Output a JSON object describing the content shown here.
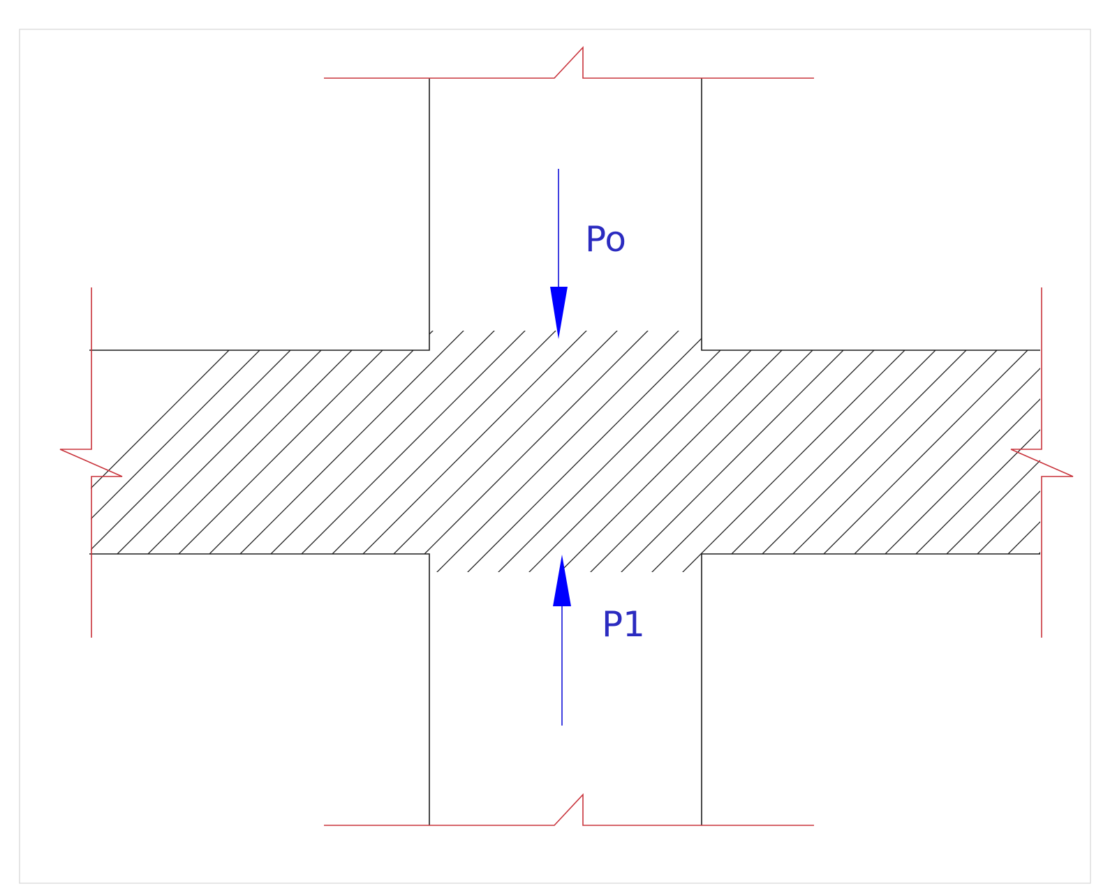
{
  "loads": [
    {
      "id": "load-po",
      "label": "Po",
      "direction": "down",
      "color": "#0000ff"
    },
    {
      "id": "load-p1",
      "label": "P1",
      "direction": "up",
      "color": "#0000ff"
    }
  ],
  "colors": {
    "outline": "#1a1a1a",
    "break_lines": "#c8323a",
    "load_arrows": "#0000ff",
    "label_text": "#2b2bc0",
    "frame": "#d4d4d4"
  },
  "hatch": {
    "pattern": "diagonal-45",
    "region": "slab-section"
  }
}
